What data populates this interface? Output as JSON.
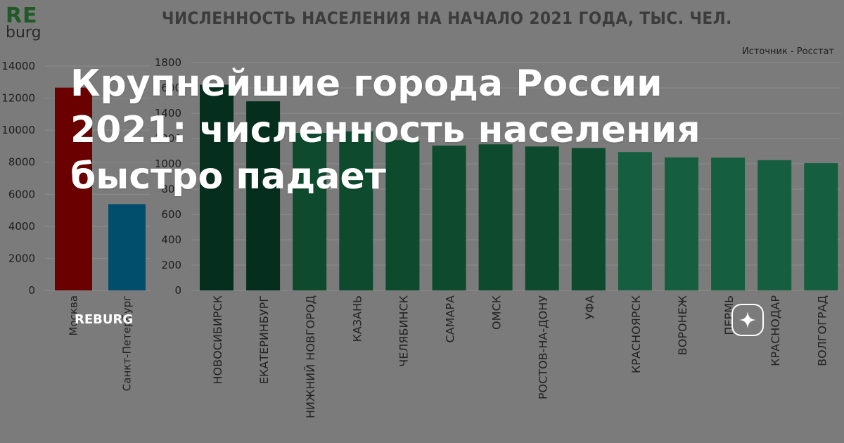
{
  "logo": {
    "line1": "RE",
    "line2": "burg"
  },
  "title": "ЧИСЛЕННОСТЬ НАСЕЛЕНИЯ НА НАЧАЛО 2021 ГОДА, ТЫС. ЧЕЛ.",
  "source": "Источник - Росстат",
  "headline": "Крупнейшие города России 2021: численность населения быстро падает",
  "brand": "REBURG",
  "badge_icon": "sparkle-icon",
  "colors": {
    "moscow": "#6b0000",
    "spb": "#004e6c",
    "dark_green": "#062e1e",
    "green": "#0d4a2e",
    "light_green": "#155e40"
  },
  "chart_data": [
    {
      "type": "bar",
      "categories": [
        "Москва",
        "Санкт-Петербург"
      ],
      "values": [
        12655,
        5384
      ],
      "ylim": [
        0,
        14000
      ],
      "yticks": [
        0,
        2000,
        4000,
        6000,
        8000,
        10000,
        12000,
        14000
      ],
      "grid": true
    },
    {
      "type": "bar",
      "categories": [
        "НОВОСИБИРСК",
        "ЕКАТЕРИНБУРГ",
        "НИЖНИЙ НОВГОРОД",
        "КАЗАНЬ",
        "ЧЕЛЯБИНСК",
        "САМАРА",
        "ОМСК",
        "РОСТОВ-НА-ДОНУ",
        "УФА",
        "КРАСНОЯРСК",
        "ВОРОНЕЖ",
        "ПЕРМЬ",
        "КРАСНОДАР",
        "ВОЛГОГРАД"
      ],
      "values": [
        1625,
        1494,
        1244,
        1257,
        1187,
        1144,
        1154,
        1137,
        1125,
        1093,
        1051,
        1049,
        1029,
        1005
      ],
      "ylim": [
        0,
        1800
      ],
      "yticks": [
        0,
        200,
        400,
        600,
        800,
        1000,
        1200,
        1400,
        1600,
        1800
      ],
      "grid": true
    }
  ]
}
